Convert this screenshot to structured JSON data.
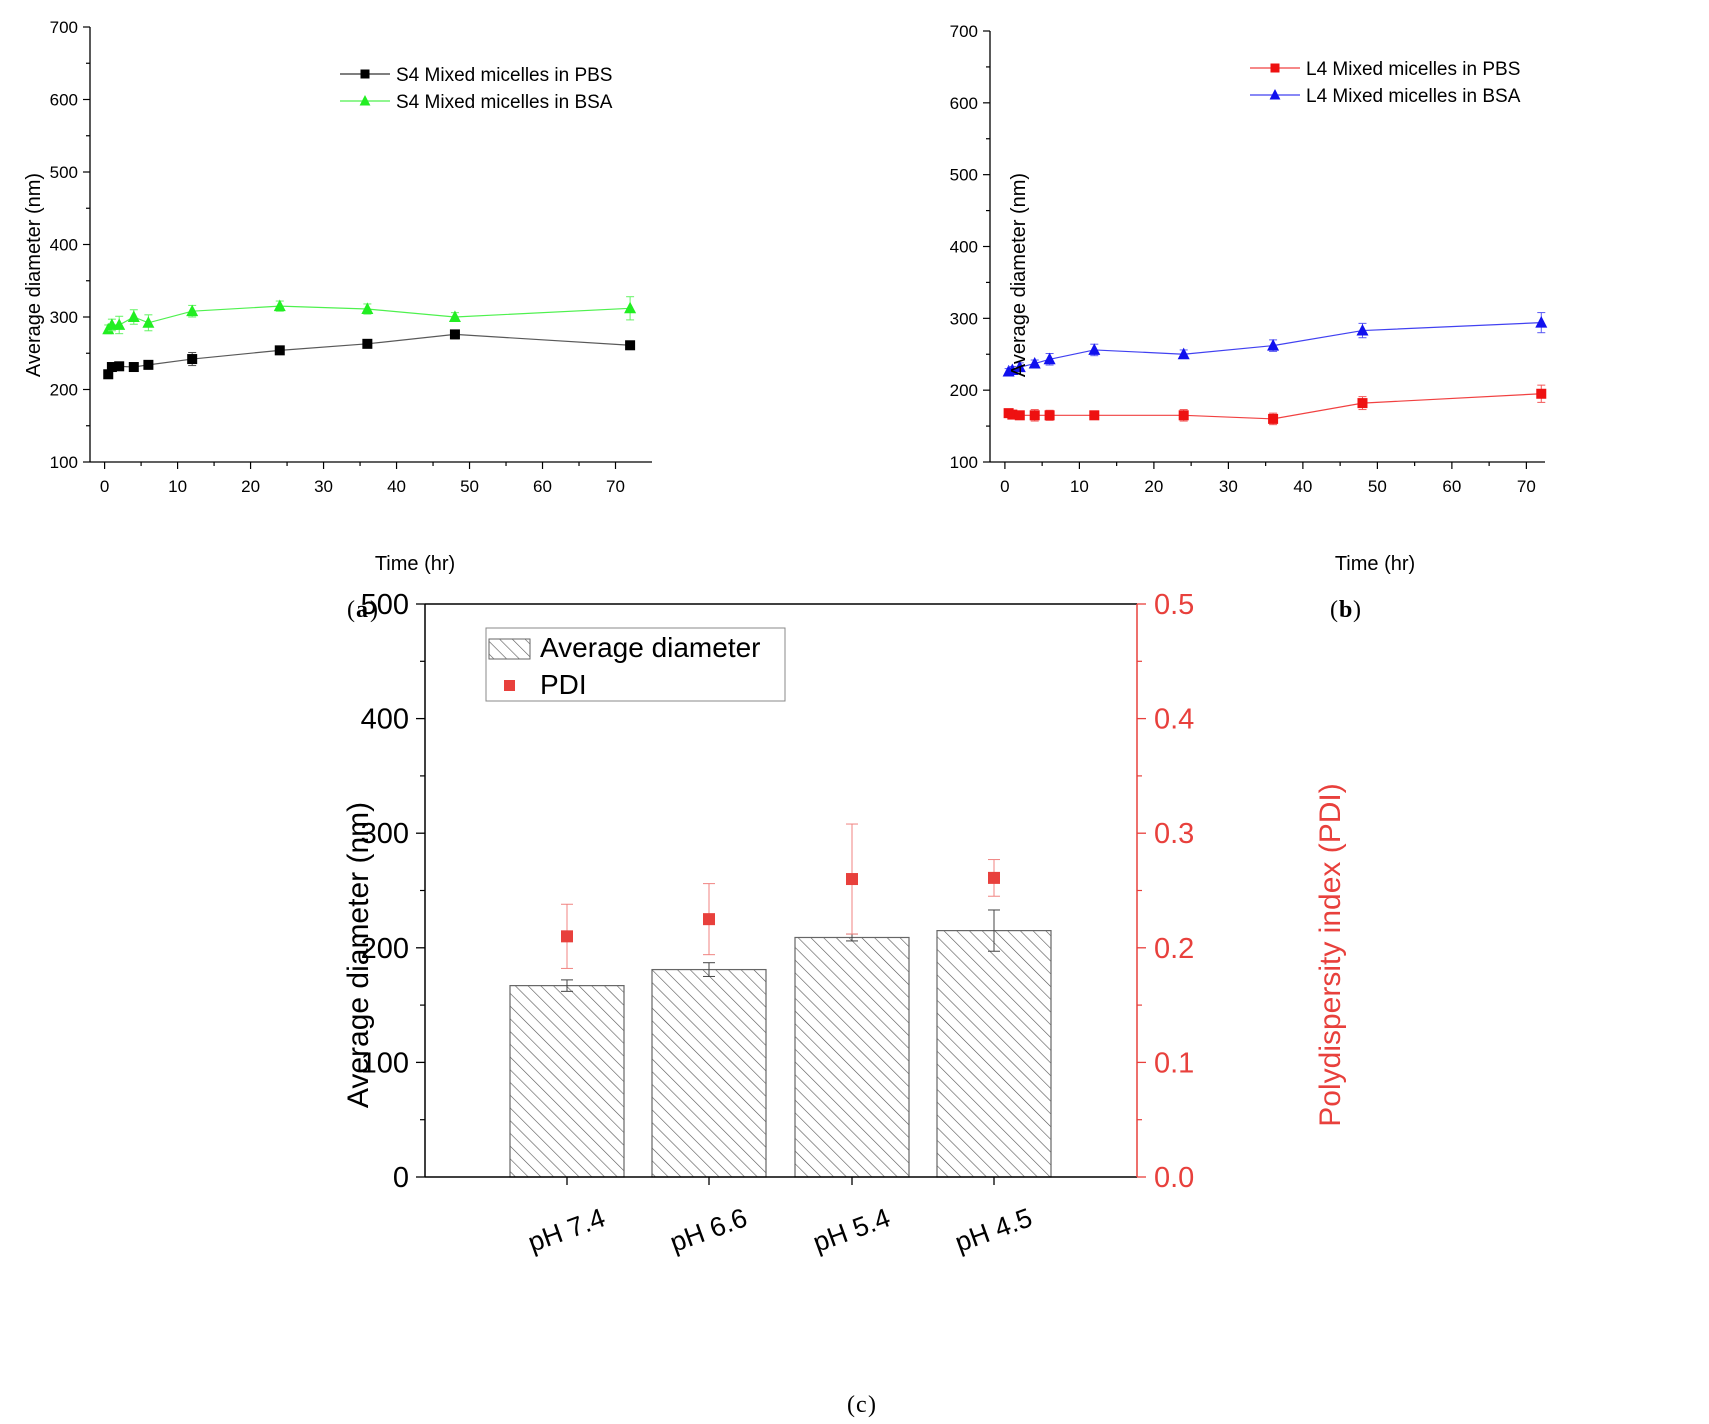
{
  "chart_data": [
    {
      "type": "line",
      "panel_label": "a",
      "xlabel": "Time (hr)",
      "ylabel": "Average diameter (nm)",
      "xlim": [
        -2,
        75
      ],
      "ylim": [
        100,
        700
      ],
      "xticks": [
        0,
        10,
        20,
        30,
        40,
        50,
        60,
        70
      ],
      "yticks": [
        100,
        200,
        300,
        400,
        500,
        600,
        700
      ],
      "legend_position": "top-right",
      "series": [
        {
          "name": "S4 Mixed micelles in PBS",
          "color": "#000000",
          "marker": "square",
          "x": [
            0.5,
            1,
            2,
            4,
            6,
            12,
            24,
            36,
            48,
            72
          ],
          "y": [
            221,
            231,
            232,
            231,
            234,
            242,
            254,
            263,
            276,
            261
          ],
          "err": [
            5,
            5,
            4,
            5,
            4,
            9,
            5,
            5,
            6,
            5
          ]
        },
        {
          "name": "S4 Mixed micelles in BSA",
          "color": "#22ee22",
          "marker": "triangle",
          "x": [
            0.5,
            1,
            2,
            4,
            6,
            12,
            24,
            36,
            48,
            72
          ],
          "y": [
            283,
            289,
            289,
            300,
            292,
            308,
            315,
            311,
            300,
            312
          ],
          "err": [
            6,
            8,
            12,
            10,
            11,
            8,
            7,
            7,
            6,
            16
          ]
        }
      ]
    },
    {
      "type": "line",
      "panel_label": "b",
      "xlabel": "Time (hr)",
      "ylabel": "Average diameter (nm)",
      "xlim": [
        -2,
        72.5
      ],
      "ylim": [
        100,
        700
      ],
      "xticks": [
        0,
        10,
        20,
        30,
        40,
        50,
        60,
        70
      ],
      "yticks": [
        100,
        200,
        300,
        400,
        500,
        600,
        700
      ],
      "legend_position": "top-right",
      "series": [
        {
          "name": "L4 Mixed micelles in PBS",
          "color": "#ee1111",
          "marker": "square",
          "x": [
            0.5,
            1,
            2,
            4,
            6,
            12,
            24,
            36,
            48,
            72
          ],
          "y": [
            168,
            166,
            165,
            165,
            165,
            165,
            165,
            160,
            182,
            195
          ],
          "err": [
            4,
            5,
            5,
            8,
            7,
            5,
            8,
            8,
            9,
            12
          ]
        },
        {
          "name": "L4 Mixed micelles in BSA",
          "color": "#1111ee",
          "marker": "triangle",
          "x": [
            0.5,
            1,
            2,
            4,
            6,
            12,
            24,
            36,
            48,
            72
          ],
          "y": [
            226,
            228,
            232,
            237,
            243,
            256,
            250,
            262,
            283,
            294
          ],
          "err": [
            4,
            5,
            6,
            5,
            8,
            8,
            6,
            8,
            10,
            14
          ]
        }
      ]
    },
    {
      "type": "bar",
      "panel_label": "c",
      "categories": [
        "pH 7.4",
        "pH 6.6",
        "pH 5.4",
        "pH 4.5"
      ],
      "ylabel": "Average diameter (nm)",
      "y2label": "Polydispersity index (PDI)",
      "ylim": [
        0,
        500
      ],
      "y2lim": [
        0,
        0.5
      ],
      "yticks": [
        0,
        100,
        200,
        300,
        400,
        500
      ],
      "y2ticks": [
        "0.0",
        "0.1",
        "0.2",
        "0.3",
        "0.4",
        "0.5"
      ],
      "legend_position": "top-left",
      "y2_color": "#e8403c",
      "series": [
        {
          "name": "Average diameter",
          "axis": "left",
          "style": "hatched bar",
          "values": [
            167,
            181,
            209,
            215
          ],
          "err": [
            5,
            6,
            3,
            18
          ]
        },
        {
          "name": "PDI",
          "axis": "right",
          "style": "square marker",
          "values": [
            0.21,
            0.225,
            0.26,
            0.261
          ],
          "err": [
            0.028,
            0.031,
            0.048,
            0.016
          ]
        }
      ]
    }
  ]
}
